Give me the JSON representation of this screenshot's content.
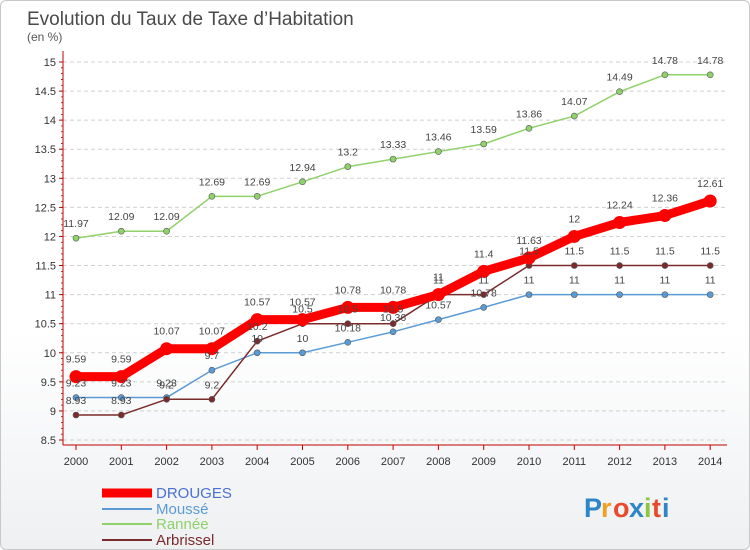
{
  "chart_data": {
    "type": "line",
    "title": "Evolution du Taux de Taxe d’Habitation",
    "subtitle": "(en %)",
    "xlabel": "",
    "ylabel": "",
    "ylim": [
      8.5,
      15
    ],
    "yticks": [
      8.5,
      9,
      9.5,
      10,
      10.5,
      11,
      11.5,
      12,
      12.5,
      13,
      13.5,
      14,
      14.5,
      15
    ],
    "x": [
      "2000",
      "2001",
      "2002",
      "2003",
      "2004",
      "2005",
      "2006",
      "2007",
      "2008",
      "2009",
      "2010",
      "2011",
      "2012",
      "2013",
      "2014"
    ],
    "grid": "horizontal dashed",
    "legend_position": "bottom-left",
    "series": [
      {
        "name": "DROUGES",
        "color": "#ff0000",
        "bold": true,
        "values": [
          9.59,
          9.59,
          10.07,
          10.07,
          10.57,
          10.57,
          10.78,
          10.78,
          11,
          11.4,
          11.63,
          12,
          12.24,
          12.36,
          12.61
        ],
        "labels": [
          "9.59",
          "9.59",
          "10.07",
          "10.07",
          "10.57",
          "10.57",
          "10.78",
          "10.78",
          "11",
          "11.4",
          "11.63",
          "12",
          "12.24",
          "12.36",
          "12.61"
        ]
      },
      {
        "name": "Moussé",
        "color": "#5b9bd5",
        "bold": false,
        "values": [
          9.23,
          9.23,
          9.23,
          9.7,
          10,
          10,
          10.18,
          10.36,
          10.57,
          10.78,
          11,
          11,
          11,
          11,
          11
        ],
        "labels": [
          "9.23",
          "9.23",
          "9.23",
          "9.7",
          "10",
          "10",
          "10.18",
          "10.36",
          "10.57",
          "10.78",
          "11",
          "11",
          "11",
          "11",
          "11"
        ]
      },
      {
        "name": "Rannée",
        "color": "#8fd16a",
        "bold": false,
        "values": [
          11.97,
          12.09,
          12.09,
          12.69,
          12.69,
          12.94,
          13.2,
          13.33,
          13.46,
          13.59,
          13.86,
          14.07,
          14.49,
          14.78,
          14.78
        ],
        "labels": [
          "11.97",
          "12.09",
          "12.09",
          "12.69",
          "12.69",
          "12.94",
          "13.2",
          "13.33",
          "13.46",
          "13.59",
          "13.86",
          "14.07",
          "14.49",
          "14.78",
          "14.78"
        ]
      },
      {
        "name": "Arbrissel",
        "color": "#7a2b2b",
        "bold": false,
        "values": [
          8.93,
          8.93,
          9.2,
          9.2,
          10.2,
          10.5,
          10.5,
          10.5,
          11,
          11,
          11.5,
          11.5,
          11.5,
          11.5,
          11.5
        ],
        "labels": [
          "8.93",
          "8.93",
          "9.2",
          "9.2",
          "10.2",
          "10.5",
          "10.5",
          "10.5",
          "11",
          "11",
          "11.5",
          "11.5",
          "11.5",
          "11.5",
          "11.5"
        ]
      }
    ]
  },
  "logo": {
    "text": "Proxiti",
    "letter_colors": [
      "#2e86c9",
      "#f0a020",
      "#e84a2a",
      "#2e86c9",
      "#8cc63f",
      "#e84a2a",
      "#2e86c9"
    ]
  },
  "colors": {
    "axis": "#c00000",
    "grid": "#d0d0d0",
    "legend_drouges": "#4a6fd6"
  }
}
